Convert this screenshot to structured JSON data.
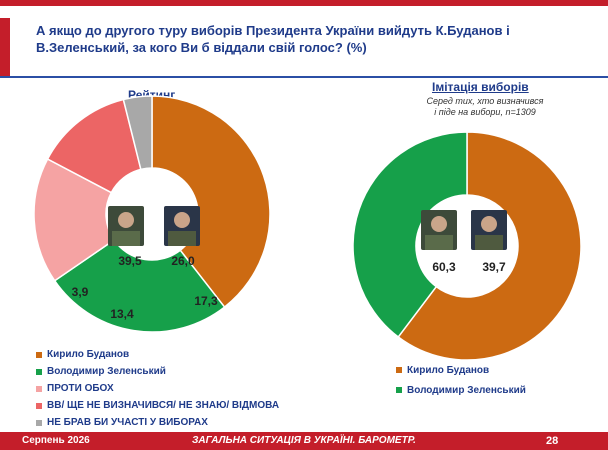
{
  "title": "А якщо до другого туру виборів Президента України вийдуть К.Буданов і В.Зеленський, за кого Ви б віддали свій голос? (%)",
  "left": {
    "subtitle": "Рейтинг"
  },
  "right": {
    "subtitle": "Імітація виборів",
    "note_line1": "Серед тих, хто визначився",
    "note_line2": "і піде на вибори, n=1309"
  },
  "legend_left": [
    {
      "label": "Кирило Буданов",
      "color": "#cc6a12"
    },
    {
      "label": "Володимир Зеленський",
      "color": "#16a04a"
    },
    {
      "label": "ПРОТИ ОБОХ",
      "color": "#f5a3a3"
    },
    {
      "label": "ВВ/ ЩЕ НЕ ВИЗНАЧИВСЯ/ НЕ ЗНАЮ/ ВІДМОВА",
      "color": "#ec6565"
    },
    {
      "label": "НЕ БРАВ БИ УЧАСТІ У ВИБОРАХ",
      "color": "#a8a8a8"
    }
  ],
  "legend_right": [
    {
      "label": "Кирило Буданов",
      "color": "#cc6a12"
    },
    {
      "label": "Володимир Зеленський",
      "color": "#16a04a"
    }
  ],
  "chart_data": [
    {
      "type": "pie",
      "title": "Рейтинг",
      "categories": [
        "Кирило Буданов",
        "Володимир Зеленський",
        "ПРОТИ ОБОХ",
        "ВВ/ ЩЕ НЕ ВИЗНАЧИВСЯ/ НЕ ЗНАЮ/ ВІДМОВА",
        "НЕ БРАВ БИ УЧАСТІ У ВИБОРАХ"
      ],
      "values": [
        39.5,
        26.0,
        17.3,
        13.4,
        3.9
      ],
      "labels": [
        "39,5",
        "26,0",
        "17,3",
        "13,4",
        "3,9"
      ],
      "colors": [
        "#cc6a12",
        "#16a04a",
        "#f5a3a3",
        "#ec6565",
        "#a8a8a8"
      ]
    },
    {
      "type": "pie",
      "title": "Імітація виборів",
      "categories": [
        "Кирило Буданов",
        "Володимир Зеленський"
      ],
      "values": [
        60.3,
        39.7
      ],
      "labels": [
        "60,3",
        "39,7"
      ],
      "colors": [
        "#cc6a12",
        "#16a04a"
      ]
    }
  ],
  "footer": {
    "date": "Серпень 2026",
    "center": "ЗАГАЛЬНА СИТУАЦІЯ В УКРАЇНІ. БАРОМЕТР.",
    "page": "28"
  }
}
